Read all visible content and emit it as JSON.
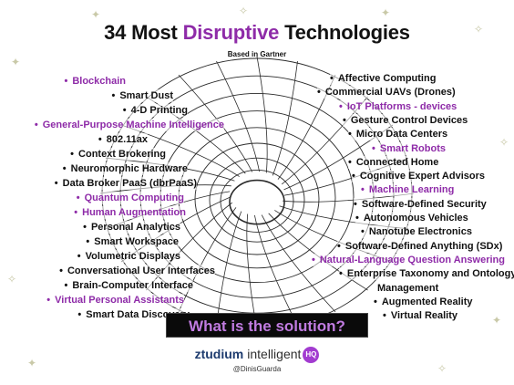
{
  "title": {
    "prefix": "34 Most ",
    "accent": "Disruptive",
    "suffix": " Technologies"
  },
  "subtitle": "Based in Gartner",
  "bullet": "•",
  "left_items": [
    {
      "label": "Blockchain",
      "highlight": true
    },
    {
      "label": "Smart Dust",
      "highlight": false
    },
    {
      "label": "4-D Printing",
      "highlight": false
    },
    {
      "label": "General-Purpose Machine Intelligence",
      "highlight": true
    },
    {
      "label": "802.11ax",
      "highlight": false
    },
    {
      "label": "Context Brokering",
      "highlight": false
    },
    {
      "label": "Neuromorphic Hardware",
      "highlight": false
    },
    {
      "label": "Data Broker PaaS (dbrPaaS)",
      "highlight": false
    },
    {
      "label": "Quantum Computing",
      "highlight": true
    },
    {
      "label": "Human Augmentation",
      "highlight": true
    },
    {
      "label": "Personal Analytics",
      "highlight": false
    },
    {
      "label": "Smart Workspace",
      "highlight": false
    },
    {
      "label": "Volumetric Displays",
      "highlight": false
    },
    {
      "label": "Conversational User Interfaces",
      "highlight": false
    },
    {
      "label": "Brain-Computer Interface",
      "highlight": false
    },
    {
      "label": "Virtual Personal Assistants",
      "highlight": true
    },
    {
      "label": "Smart Data Discovery",
      "highlight": false
    }
  ],
  "right_items": [
    {
      "label": "Affective Computing",
      "highlight": false
    },
    {
      "label": "Commercial UAVs (Drones)",
      "highlight": false
    },
    {
      "label": "IoT Platforms - devices",
      "highlight": true
    },
    {
      "label": "Gesture Control Devices",
      "highlight": false
    },
    {
      "label": "Micro Data Centers",
      "highlight": false
    },
    {
      "label": "Smart Robots",
      "highlight": true
    },
    {
      "label": "Connected Home",
      "highlight": false
    },
    {
      "label": "Cognitive Expert Advisors",
      "highlight": false
    },
    {
      "label": "Machine Learning",
      "highlight": true
    },
    {
      "label": "Software-Defined Security",
      "highlight": false
    },
    {
      "label": "Autonomous Vehicles",
      "highlight": false
    },
    {
      "label": "Nanotube Electronics",
      "highlight": false
    },
    {
      "label": "Software-Defined Anything (SDx)",
      "highlight": false
    },
    {
      "label": "Natural-Language Question Answering",
      "highlight": true
    },
    {
      "label": "Enterprise Taxonomy and Ontology",
      "highlight": false
    },
    {
      "label": "Management",
      "highlight": false,
      "continuation": true
    },
    {
      "label": "Augmented Reality",
      "highlight": false
    },
    {
      "label": "Virtual Reality",
      "highlight": false
    }
  ],
  "solution_banner": "What is the solution?",
  "logo": {
    "brand": "ztudium",
    "product": "intelligent",
    "badge": "HQ"
  },
  "handle": "@DinisGuarda",
  "colors": {
    "accent": "#8e2ba8",
    "text": "#111111",
    "banner_bg": "#0a0a0a",
    "banner_text": "#c07be0",
    "logo_brand": "#1d3b6e"
  }
}
